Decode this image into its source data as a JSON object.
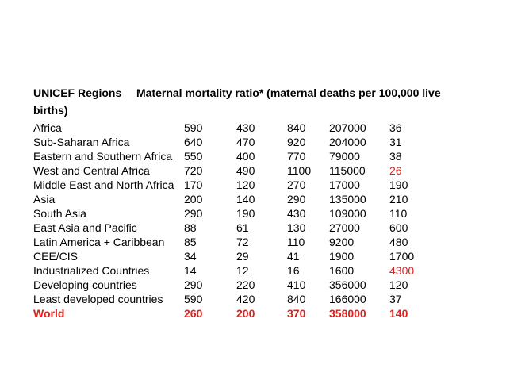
{
  "heading": {
    "regions_label": "UNICEF Regions",
    "ratio_label": "Maternal mortality ratio* (maternal deaths per 100,000 live births)"
  },
  "colors": {
    "highlight": "#e0201c",
    "text": "#000000"
  },
  "rows": [
    {
      "region": "Africa",
      "v1": "590",
      "v2": "430",
      "v3": "840",
      "v4": "207000",
      "v5": "36",
      "v5_red": false,
      "row_red": false
    },
    {
      "region": "Sub-Saharan Africa",
      "v1": "640",
      "v2": "470",
      "v3": "920",
      "v4": "204000",
      "v5": "31",
      "v5_red": false,
      "row_red": false
    },
    {
      "region": "Eastern and Southern Africa",
      "v1": "550",
      "v2": "400",
      "v3": "770",
      "v4": "79000",
      "v5": "38",
      "v5_red": false,
      "row_red": false
    },
    {
      "region": "West and Central Africa",
      "v1": "720",
      "v2": "490",
      "v3": "1100",
      "v4": "115000",
      "v5": "26",
      "v5_red": true,
      "row_red": false
    },
    {
      "region": "Middle East and North Africa",
      "v1": "170",
      "v2": "120",
      "v3": "270",
      "v4": "17000",
      "v5": "190",
      "v5_red": false,
      "row_red": false
    },
    {
      "region": "Asia",
      "v1": "200",
      "v2": "140",
      "v3": "290",
      "v4": "135000",
      "v5": "210",
      "v5_red": false,
      "row_red": false
    },
    {
      "region": "South Asia",
      "v1": "290",
      "v2": "190",
      "v3": "430",
      "v4": "109000",
      "v5": "110",
      "v5_red": false,
      "row_red": false
    },
    {
      "region": "East Asia and Pacific",
      "v1": "88",
      "v2": "61",
      "v3": "130",
      "v4": "27000",
      "v5": "600",
      "v5_red": false,
      "row_red": false
    },
    {
      "region": "Latin America + Caribbean",
      "v1": "85",
      "v2": "72",
      "v3": "110",
      "v4": "9200",
      "v5": "480",
      "v5_red": false,
      "row_red": false
    },
    {
      "region": "CEE/CIS",
      "v1": "34",
      "v2": "29",
      "v3": "41",
      "v4": "1900",
      "v5": "1700",
      "v5_red": false,
      "row_red": false
    },
    {
      "region": "Industrialized Countries",
      "v1": "14",
      "v2": "12",
      "v3": "16",
      "v4": "1600",
      "v5": "4300",
      "v5_red": true,
      "row_red": false
    },
    {
      "region": "Developing countries",
      "v1": "290",
      "v2": "220",
      "v3": "410",
      "v4": "356000",
      "v5": "120",
      "v5_red": false,
      "row_red": false
    },
    {
      "region": "Least developed countries",
      "v1": "590",
      "v2": "420",
      "v3": "840",
      "v4": "166000",
      "v5": "37",
      "v5_red": false,
      "row_red": false
    },
    {
      "region": "World",
      "v1": "260",
      "v2": "200",
      "v3": "370",
      "v4": "358000",
      "v5": "140",
      "v5_red": true,
      "row_red": true
    }
  ]
}
